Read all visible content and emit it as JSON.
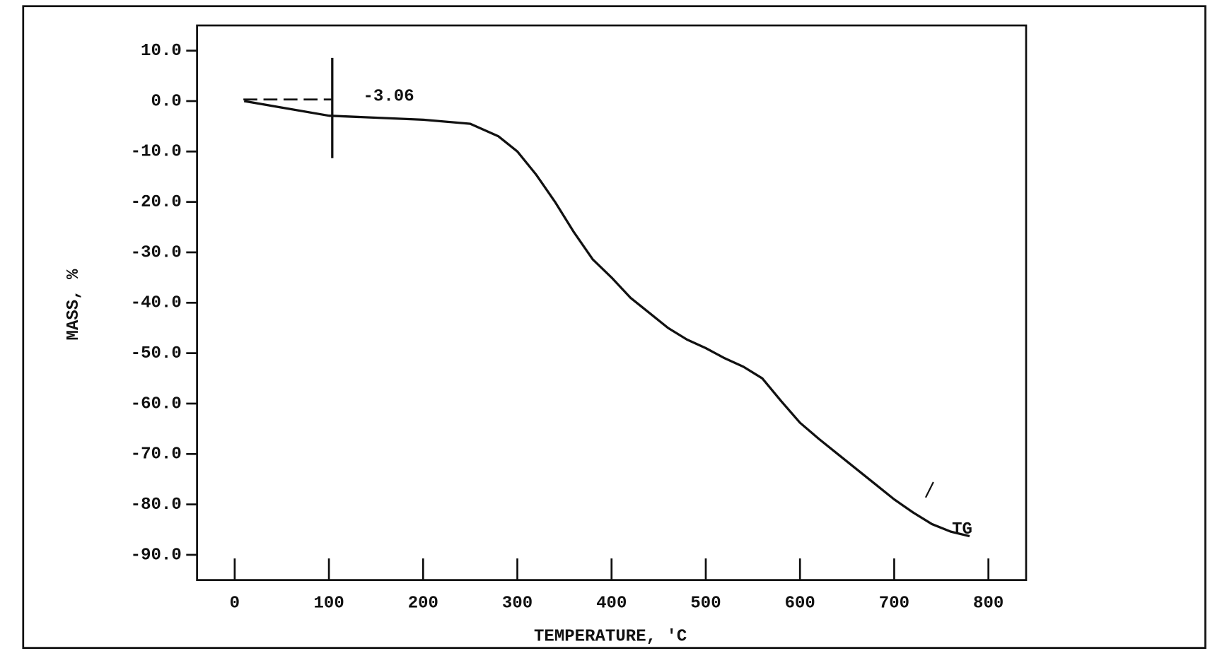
{
  "chart_data": {
    "type": "line",
    "xlabel": "TEMPERATURE, 'C",
    "ylabel": "MASS, %",
    "annotations": [
      "-3.06",
      "TG"
    ],
    "x": [
      10,
      100,
      200,
      250,
      280,
      300,
      320,
      340,
      360,
      380,
      400,
      420,
      440,
      460,
      480,
      500,
      520,
      540,
      560,
      580,
      600,
      620,
      640,
      660,
      680,
      700,
      720,
      740,
      760,
      780
    ],
    "series": [
      {
        "color": "#111111",
        "values": [
          0,
          -2.9,
          -3.7,
          -4.5,
          -7,
          -10,
          -14.6,
          -20,
          -26,
          -31.4,
          -35,
          -39,
          -42,
          -45,
          -47.3,
          -49,
          -51,
          -52.7,
          -55,
          -59.5,
          -63.8,
          -67,
          -70,
          -73,
          -76,
          -79,
          -81.6,
          -83.9,
          -85.4,
          -86.3
        ]
      }
    ],
    "xlim": [
      -40,
      840
    ],
    "xticks": [
      0,
      100,
      200,
      300,
      400,
      500,
      600,
      700,
      800
    ],
    "ylim": [
      -95,
      15
    ],
    "yticks": [
      {
        "value": 10,
        "label": "10.0"
      },
      {
        "value": 0,
        "label": "0.0"
      },
      {
        "value": -10,
        "label": "-10.0"
      },
      {
        "value": -20,
        "label": "-20.0"
      },
      {
        "value": -30,
        "label": "-30.0"
      },
      {
        "value": -40,
        "label": "-40.0"
      },
      {
        "value": -50,
        "label": "-50.0"
      },
      {
        "value": -60,
        "label": "-60.0"
      },
      {
        "value": -70,
        "label": "-70.0"
      },
      {
        "value": -80,
        "label": "-80.0"
      },
      {
        "value": -90,
        "label": "-90.0"
      }
    ]
  }
}
